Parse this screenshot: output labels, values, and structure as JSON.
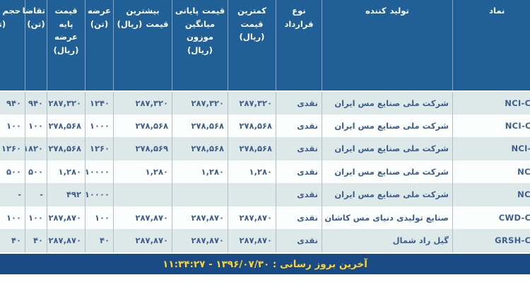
{
  "table": {
    "columns": [
      {
        "key": "symbol",
        "label": "نماد"
      },
      {
        "key": "producer",
        "label": "تولید کننده"
      },
      {
        "key": "contract",
        "label": "نوع قرارداد"
      },
      {
        "key": "min_price",
        "label": "کمترین قیمت (ریال)"
      },
      {
        "key": "close_price",
        "label": "قیمت پایانی میانگین موزون (ریال)"
      },
      {
        "key": "max_price",
        "label": "بیشترین قیمت (ریال)"
      },
      {
        "key": "supply",
        "label": "عرضه (تن)"
      },
      {
        "key": "base_price",
        "label": "قیمت پایه عرضه (ریال)"
      },
      {
        "key": "demand",
        "label": "تقاضا (تن)"
      },
      {
        "key": "volume",
        "label": "حجم معامله (تن)"
      }
    ],
    "rows": [
      {
        "symbol": "NCI-CR",
        "producer": "شرکت ملی صنایع مس ایران",
        "contract": "نقدی",
        "min_price": "۲۸۷,۳۲۰",
        "close_price": "۲۸۷,۳۲۰",
        "max_price": "۲۸۷,۳۲۰",
        "supply": "۱۲۴۰",
        "base_price": "۲۸۷,۳۲۰",
        "demand": "۹۴۰",
        "volume": "۹۴۰"
      },
      {
        "symbol": "NCI-CC",
        "producer": "شرکت ملی صنایع مس ایران",
        "contract": "نقدی",
        "min_price": "۲۷۸,۵۶۸",
        "close_price": "۲۷۸,۵۶۸",
        "max_price": "۲۷۸,۵۶۸",
        "supply": "۱۰۰۰",
        "base_price": "۲۷۸,۵۶۸",
        "demand": "۱۰۰",
        "volume": "۱۰۰"
      },
      {
        "symbol": "NCI-C",
        "producer": "شرکت ملی صنایع مس ایران",
        "contract": "نقدی",
        "min_price": "۲۷۸,۵۶۸",
        "close_price": "۲۷۸,۵۶۸",
        "max_price": "۲۷۸,۵۶۹",
        "supply": "۱۲۶۰",
        "base_price": "۲۷۸,۵۶۸",
        "demand": "۱۸۲۰",
        "volume": "۱۲۶۰"
      },
      {
        "symbol": "NCI-",
        "producer": "شرکت ملی صنایع مس ایران",
        "contract": "نقدی",
        "min_price": "۱,۲۸۰",
        "close_price": "۱,۲۸۰",
        "max_price": "۱,۲۸۰",
        "supply": "۱۰۰۰۰",
        "base_price": "۱,۲۸۰",
        "demand": "۵۰۰",
        "volume": "۵۰۰"
      },
      {
        "symbol": "NCI-",
        "producer": "شرکت ملی صنایع مس ایران",
        "contract": "نقدی",
        "min_price": "",
        "close_price": "",
        "max_price": "",
        "supply": "۱۰۰۰۰",
        "base_price": "۴۹۲",
        "demand": "-",
        "volume": "-"
      },
      {
        "symbol": "CWD-CR",
        "producer": "صنایع تولیدی دنیای مس کاشان",
        "contract": "نقدی",
        "min_price": "۲۸۷,۸۷۰",
        "close_price": "۲۸۷,۸۷۰",
        "max_price": "۲۸۷,۸۷۰",
        "supply": "۱۰۰",
        "base_price": "۲۸۷,۸۷۰",
        "demand": "۱۰۰",
        "volume": "۱۰۰"
      },
      {
        "symbol": "GRSH-CR",
        "producer": "گیل راد شمال",
        "contract": "نقدی",
        "min_price": "۲۸۷,۸۷۰",
        "close_price": "۲۸۷,۸۷۰",
        "max_price": "۲۸۷,۸۷۰",
        "supply": "۴۰",
        "base_price": "۲۸۷,۸۷۰",
        "demand": "۴۰",
        "volume": "۴۰"
      }
    ]
  },
  "footer": {
    "last_update": "آخرین بروز رسانی : ۱۳۹۶/۰۷/۳۰ - ۱۱:۳۴:۲۷"
  },
  "colors": {
    "header_bg": "#216097",
    "row_alt_bg": "#dde8e9",
    "row_bg": "#fcfefe",
    "footer_bg": "#194a83",
    "footer_text": "#fdd431",
    "cell_text": "#3d5e8e",
    "symbol_text": "#22407a"
  }
}
